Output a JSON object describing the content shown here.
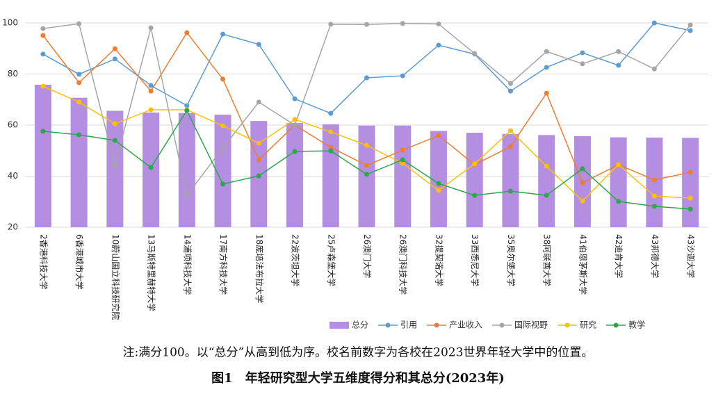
{
  "chart_data": {
    "type": "combo",
    "title": "图1　年轻研究型大学五维度得分和其总分(2023年)",
    "note": "注:满分100。以“总分”从高到低为序。校名前数字为各校在2023世界年轻大学中的位置。",
    "categories": [
      "2香港科技大学",
      "6香港城市大学",
      "10蔚山国立科技研究院",
      "13马斯特里赫特大学",
      "14浦项科技大学",
      "17南方科技大学",
      "18庞培法布拉大学",
      "22波茨坦大学",
      "25卢森堡大学",
      "26澳门大学",
      "26澳门科技大学",
      "32提契诺大学",
      "33西悉尼大学",
      "35奥尔堡大学",
      "38阿联酋大学",
      "41伯恩茅斯大学",
      "42迪肯大学",
      "43邦德大学",
      "43沙迦大学"
    ],
    "series": [
      {
        "name": "总分",
        "type": "bar",
        "color": "#b48ee0",
        "values": [
          75.8,
          70.7,
          65.6,
          64.9,
          64.7,
          64.1,
          61.6,
          60.8,
          60.3,
          59.8,
          59.8,
          57.7,
          57.0,
          56.5,
          56.1,
          55.7,
          55.2,
          55.1,
          55.0
        ]
      },
      {
        "name": "引用",
        "type": "line",
        "color": "#5b9bd5",
        "values": [
          87.8,
          79.9,
          85.9,
          75.5,
          67.6,
          95.6,
          91.6,
          70.3,
          64.6,
          78.5,
          79.3,
          91.3,
          87.8,
          73.3,
          82.6,
          88.3,
          83.4,
          100,
          97.0
        ]
      },
      {
        "name": "产业收入",
        "type": "line",
        "color": "#ed7d31",
        "values": [
          95.1,
          76.6,
          89.9,
          73.3,
          96.2,
          78.0,
          46.4,
          60.0,
          51.3,
          44.2,
          50.2,
          55.9,
          44.5,
          51.6,
          72.5,
          37.4,
          44.5,
          38.5,
          41.5
        ]
      },
      {
        "name": "国际视野",
        "type": "line",
        "color": "#a5a5a5",
        "values": [
          97.8,
          99.7,
          44.2,
          98.1,
          32.5,
          51.0,
          69.0,
          60.0,
          99.5,
          99.4,
          99.8,
          99.6,
          88.0,
          76.3,
          88.8,
          84.0,
          88.8,
          82.0,
          99.2
        ]
      },
      {
        "name": "研究",
        "type": "line",
        "color": "#ffc000",
        "values": [
          75.2,
          69.0,
          60.5,
          66.0,
          66.0,
          59.7,
          52.9,
          62.2,
          57.3,
          52.1,
          45.0,
          34.4,
          44.8,
          57.8,
          43.9,
          30.3,
          44.5,
          32.2,
          31.4
        ]
      },
      {
        "name": "教学",
        "type": "line",
        "color": "#2aa84a",
        "values": [
          57.6,
          56.2,
          54.0,
          43.4,
          65.7,
          36.9,
          40.1,
          49.7,
          49.9,
          40.7,
          46.4,
          37.1,
          32.5,
          34.1,
          32.5,
          42.9,
          30.1,
          28.2,
          27.1
        ]
      }
    ],
    "ylim": [
      20,
      100
    ],
    "yticks": [
      20,
      40,
      60,
      80,
      100
    ],
    "grid": true,
    "legend": "bottom"
  }
}
